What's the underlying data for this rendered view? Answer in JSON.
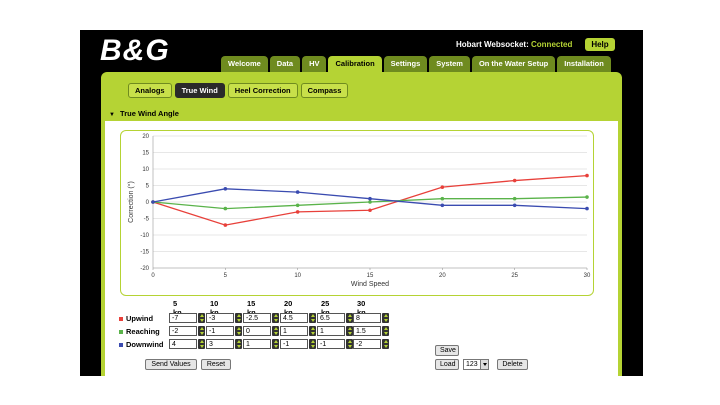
{
  "header": {
    "logo": "B&G",
    "connection_label": "Hobart Websocket:",
    "connection_status": "Connected",
    "help_label": "Help"
  },
  "tabs": [
    "Welcome",
    "Data",
    "HV",
    "Calibration",
    "Settings",
    "System",
    "On the Water Setup",
    "Installation"
  ],
  "active_tab": "Calibration",
  "subtabs": [
    "Analogs",
    "True Wind",
    "Heel Correction",
    "Compass"
  ],
  "active_subtab": "True Wind",
  "panel": {
    "title": "True Wind Angle"
  },
  "colors": {
    "accent": "#b5d334",
    "upwind": "#e8403a",
    "reaching": "#5ab34a",
    "downwind": "#3a4bb0"
  },
  "chart_data": {
    "type": "line",
    "xlabel": "Wind Speed",
    "ylabel": "Correction (°)",
    "xlim": [
      0,
      30
    ],
    "ylim": [
      -20,
      20
    ],
    "x_ticks": [
      0,
      5,
      10,
      15,
      20,
      25,
      30
    ],
    "y_ticks": [
      20,
      15,
      10,
      5,
      0,
      -5,
      -10,
      -15,
      -20
    ],
    "x": [
      0,
      5,
      10,
      15,
      20,
      25,
      30
    ],
    "series": [
      {
        "name": "Upwind",
        "values": [
          0,
          -7,
          -3,
          -2.5,
          4.5,
          6.5,
          8
        ]
      },
      {
        "name": "Reaching",
        "values": [
          0,
          -2,
          -1,
          0,
          1,
          1,
          1.5
        ]
      },
      {
        "name": "Downwind",
        "values": [
          0,
          4,
          3,
          1,
          -1,
          -1,
          -2
        ]
      }
    ],
    "grid": true
  },
  "table": {
    "columns": [
      "5 kn",
      "10 kn",
      "15 kn",
      "20 kn",
      "25 kn",
      "30 kn"
    ],
    "rows": [
      {
        "label": "Upwind",
        "values": [
          "-7",
          "-3",
          "-2.5",
          "4.5",
          "6.5",
          "8"
        ]
      },
      {
        "label": "Reaching",
        "values": [
          "-2",
          "-1",
          "0",
          "1",
          "1",
          "1.5"
        ]
      },
      {
        "label": "Downwind",
        "values": [
          "4",
          "3",
          "1",
          "-1",
          "-1",
          "-2"
        ]
      }
    ]
  },
  "buttons": {
    "save": "Save",
    "load": "Load",
    "preset_value": "123",
    "delete": "Delete",
    "send_values": "Send Values",
    "reset": "Reset"
  }
}
